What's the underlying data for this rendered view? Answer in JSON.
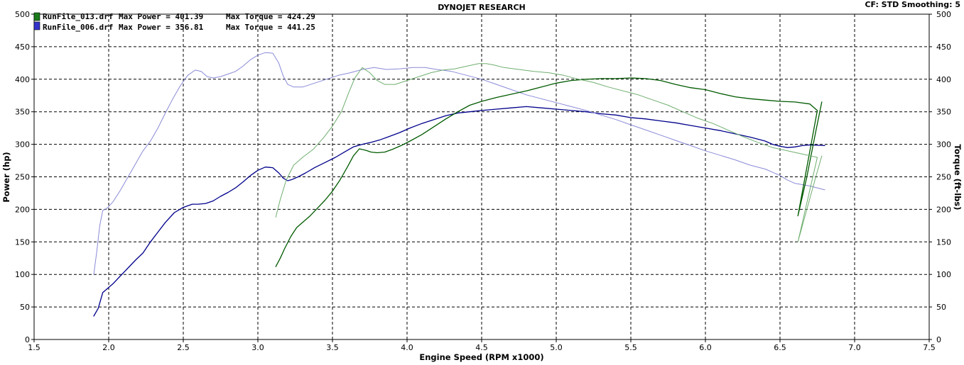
{
  "header": {
    "title": "DYNOJET RESEARCH",
    "corner_info": "CF: STD  Smoothing: 5"
  },
  "legend": [
    {
      "file": "RunFile_013.drf",
      "power_label": "Max Power = 401.39",
      "torque_label": "Max Torque = 424.29",
      "color": "#1a7a1a"
    },
    {
      "file": "RunFile_006.drf",
      "power_label": "Max Power = 356.81",
      "torque_label": "Max Torque = 441.25",
      "color": "#3333cc"
    }
  ],
  "chart_data": {
    "type": "line",
    "title": "DYNOJET RESEARCH",
    "xlabel": "Engine Speed (RPM x1000)",
    "ylabel": "Power (hp)",
    "y2label": "Torque (ft-lbs)",
    "xlim": [
      1.5,
      7.5
    ],
    "ylim": [
      0,
      500
    ],
    "y2lim": [
      0,
      500
    ],
    "x_ticks": [
      "1.5",
      "2.0",
      "2.5",
      "3.0",
      "3.5",
      "4.0",
      "4.5",
      "5.0",
      "5.5",
      "6.0",
      "6.5",
      "7.0",
      "7.5"
    ],
    "y_ticks": [
      "0",
      "50",
      "100",
      "150",
      "200",
      "250",
      "300",
      "350",
      "400",
      "450",
      "500"
    ],
    "grid": true,
    "legend_position": "top-left",
    "series": [
      {
        "name": "RunFile_006.drf Power",
        "color": "#00008b",
        "width": 1.3,
        "x": [
          1.9,
          1.93,
          1.96,
          1.99,
          2.03,
          2.08,
          2.13,
          2.18,
          2.23,
          2.28,
          2.33,
          2.38,
          2.44,
          2.5,
          2.56,
          2.6,
          2.65,
          2.7,
          2.75,
          2.8,
          2.85,
          2.9,
          2.95,
          3.0,
          3.05,
          3.1,
          3.14,
          3.17,
          3.2,
          3.23,
          3.27,
          3.32,
          3.38,
          3.45,
          3.52,
          3.58,
          3.64,
          3.7,
          3.76,
          3.82,
          3.88,
          3.95,
          4.02,
          4.1,
          4.18,
          4.26,
          4.34,
          4.42,
          4.5,
          4.6,
          4.7,
          4.8,
          4.9,
          5.0,
          5.1,
          5.2,
          5.3,
          5.4,
          5.5,
          5.6,
          5.7,
          5.8,
          5.9,
          6.0,
          6.1,
          6.2,
          6.3,
          6.4,
          6.45,
          6.5,
          6.55,
          6.6,
          6.65,
          6.7,
          6.8
        ],
        "y": [
          36,
          48,
          72,
          78,
          86,
          98,
          110,
          122,
          133,
          150,
          165,
          180,
          195,
          203,
          208,
          208,
          209,
          213,
          220,
          226,
          233,
          242,
          252,
          260,
          265,
          264,
          256,
          248,
          244,
          246,
          250,
          256,
          264,
          272,
          280,
          288,
          296,
          300,
          303,
          307,
          312,
          318,
          325,
          332,
          338,
          344,
          348,
          350,
          352,
          354,
          356,
          358,
          356,
          354,
          352,
          350,
          347,
          345,
          341,
          339,
          336,
          333,
          329,
          325,
          321,
          316,
          311,
          305,
          300,
          297,
          295,
          296,
          298,
          299,
          298
        ]
      },
      {
        "name": "RunFile_006.drf Torque",
        "color": "#8a8ad8",
        "width": 1.0,
        "x": [
          1.9,
          1.92,
          1.94,
          1.96,
          1.99,
          2.03,
          2.08,
          2.13,
          2.18,
          2.23,
          2.28,
          2.33,
          2.38,
          2.43,
          2.48,
          2.53,
          2.58,
          2.62,
          2.66,
          2.7,
          2.75,
          2.8,
          2.85,
          2.9,
          2.95,
          3.0,
          3.05,
          3.1,
          3.14,
          3.17,
          3.2,
          3.24,
          3.3,
          3.38,
          3.46,
          3.54,
          3.62,
          3.7,
          3.78,
          3.86,
          3.95,
          4.04,
          4.12,
          4.2,
          4.3,
          4.4,
          4.5,
          4.6,
          4.7,
          4.8,
          4.9,
          5.0,
          5.1,
          5.2,
          5.3,
          5.4,
          5.5,
          5.6,
          5.7,
          5.8,
          5.9,
          6.0,
          6.1,
          6.2,
          6.3,
          6.4,
          6.45,
          6.5,
          6.55,
          6.6,
          6.65,
          6.7,
          6.8
        ],
        "y": [
          100,
          135,
          175,
          198,
          202,
          212,
          230,
          250,
          270,
          290,
          305,
          325,
          348,
          370,
          390,
          406,
          414,
          412,
          404,
          402,
          404,
          408,
          412,
          420,
          430,
          437,
          441,
          440,
          425,
          405,
          392,
          388,
          388,
          394,
          400,
          406,
          410,
          415,
          418,
          415,
          416,
          418,
          418,
          415,
          412,
          406,
          400,
          392,
          384,
          376,
          370,
          364,
          358,
          352,
          345,
          338,
          330,
          322,
          314,
          306,
          298,
          290,
          283,
          276,
          268,
          262,
          257,
          252,
          245,
          240,
          238,
          236,
          230
        ]
      },
      {
        "name": "RunFile_013.drf Power",
        "color": "#005a00",
        "width": 1.3,
        "x": [
          3.12,
          3.15,
          3.18,
          3.22,
          3.26,
          3.3,
          3.35,
          3.4,
          3.45,
          3.5,
          3.55,
          3.6,
          3.64,
          3.68,
          3.72,
          3.76,
          3.8,
          3.85,
          3.9,
          3.96,
          4.02,
          4.1,
          4.18,
          4.26,
          4.34,
          4.42,
          4.5,
          4.6,
          4.7,
          4.8,
          4.9,
          5.0,
          5.1,
          5.2,
          5.3,
          5.4,
          5.5,
          5.6,
          5.7,
          5.8,
          5.9,
          6.0,
          6.1,
          6.2,
          6.3,
          6.4,
          6.5,
          6.6,
          6.7,
          6.75,
          6.62,
          6.68,
          6.74,
          6.78
        ],
        "y": [
          112,
          125,
          140,
          158,
          172,
          180,
          190,
          202,
          214,
          228,
          245,
          265,
          282,
          293,
          291,
          288,
          287,
          288,
          292,
          298,
          305,
          315,
          327,
          339,
          350,
          360,
          366,
          372,
          377,
          382,
          388,
          394,
          398,
          400,
          401,
          401,
          402,
          401,
          398,
          392,
          387,
          384,
          378,
          373,
          370,
          368,
          366,
          365,
          362,
          352,
          190,
          250,
          320,
          365
        ]
      },
      {
        "name": "RunFile_013.drf Torque",
        "color": "#6fae6f",
        "width": 1.0,
        "x": [
          3.12,
          3.15,
          3.19,
          3.24,
          3.3,
          3.37,
          3.44,
          3.5,
          3.56,
          3.61,
          3.65,
          3.7,
          3.75,
          3.8,
          3.85,
          3.92,
          4.0,
          4.08,
          4.16,
          4.24,
          4.32,
          4.4,
          4.48,
          4.53,
          4.58,
          4.65,
          4.75,
          4.85,
          4.95,
          5.05,
          5.15,
          5.25,
          5.35,
          5.45,
          5.55,
          5.65,
          5.75,
          5.85,
          5.95,
          6.05,
          6.15,
          6.25,
          6.35,
          6.45,
          6.55,
          6.65,
          6.75,
          6.62,
          6.68,
          6.74,
          6.78
        ],
        "y": [
          188,
          215,
          245,
          268,
          280,
          292,
          310,
          328,
          350,
          380,
          402,
          418,
          410,
          398,
          392,
          392,
          398,
          404,
          410,
          414,
          416,
          420,
          424,
          424,
          422,
          418,
          415,
          412,
          410,
          406,
          400,
          395,
          388,
          382,
          376,
          368,
          360,
          350,
          340,
          332,
          322,
          312,
          303,
          295,
          290,
          285,
          280,
          150,
          200,
          250,
          282
        ]
      }
    ]
  }
}
